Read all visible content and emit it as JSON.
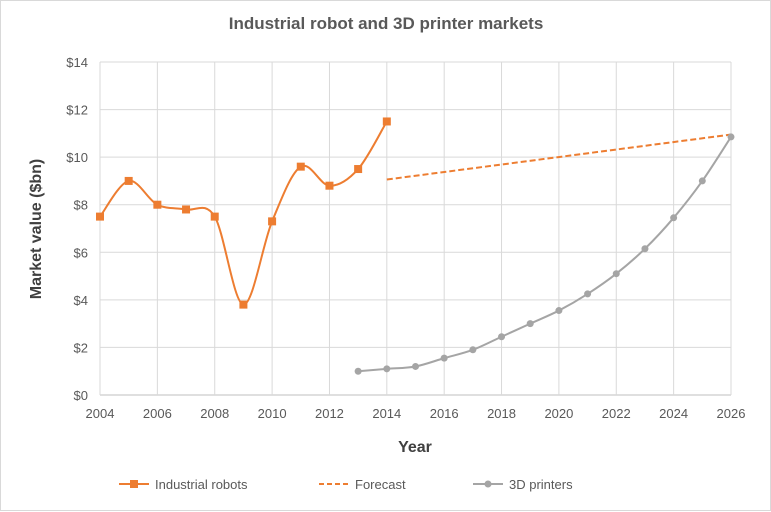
{
  "chart_data": {
    "type": "line",
    "title": "Industrial robot and 3D printer markets",
    "xlabel": "Year",
    "ylabel": "Market value ($bn)",
    "xlim": [
      2004,
      2026
    ],
    "ylim": [
      0,
      14
    ],
    "x_ticks": [
      "2004",
      "2006",
      "2008",
      "2010",
      "2012",
      "2014",
      "2016",
      "2018",
      "2020",
      "2022",
      "2024",
      "2026"
    ],
    "y_ticks": [
      "$0",
      "$2",
      "$4",
      "$6",
      "$8",
      "$10",
      "$12",
      "$14"
    ],
    "grid": true,
    "legend_position": "bottom",
    "series": [
      {
        "name": "Industrial robots",
        "color": "#ED7D31",
        "style": "smooth-square-markers",
        "x": [
          2004,
          2005,
          2006,
          2007,
          2008,
          2009,
          2010,
          2011,
          2012,
          2013,
          2014
        ],
        "values": [
          7.5,
          9.0,
          8.0,
          7.8,
          7.5,
          3.8,
          7.3,
          9.6,
          8.8,
          9.5,
          11.5
        ]
      },
      {
        "name": "Forecast",
        "color": "#ED7D31",
        "style": "dashed",
        "x": [
          2014,
          2026
        ],
        "values": [
          9.06,
          10.95
        ]
      },
      {
        "name": "3D printers",
        "color": "#A5A5A5",
        "style": "smooth-circle-markers",
        "x": [
          2013,
          2014,
          2015,
          2016,
          2017,
          2018,
          2019,
          2020,
          2021,
          2022,
          2023,
          2024,
          2025,
          2026
        ],
        "values": [
          1.0,
          1.1,
          1.2,
          1.55,
          1.9,
          2.45,
          3.0,
          3.55,
          4.25,
          5.1,
          6.15,
          7.45,
          9.0,
          10.85
        ]
      }
    ]
  }
}
